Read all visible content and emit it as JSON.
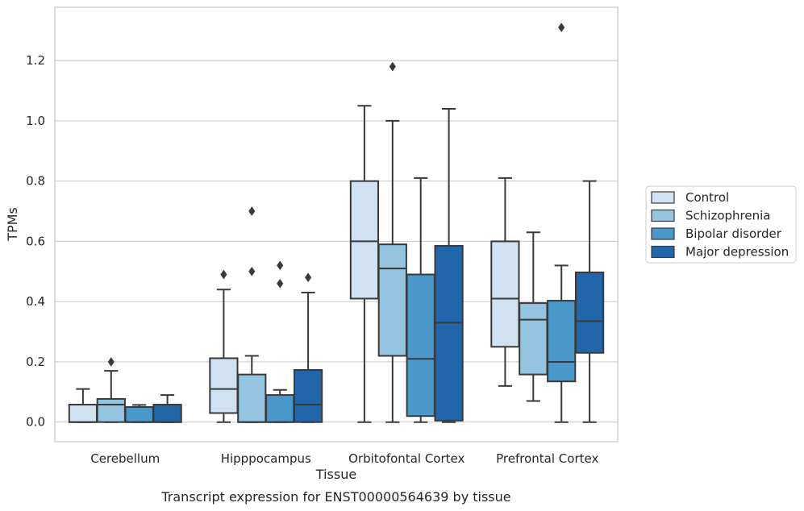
{
  "chart_data": {
    "type": "box",
    "caption": "Transcript expression for ENST00000564639 by tissue",
    "xlabel": "Tissue",
    "ylabel": "TPMs",
    "ylim": [
      -0.065,
      1.377
    ],
    "yticks": [
      0.0,
      0.2,
      0.4,
      0.6,
      0.8,
      1.0,
      1.2
    ],
    "ytick_labels": [
      "0.0",
      "0.2",
      "0.4",
      "0.6",
      "0.8",
      "1.0",
      "1.2"
    ],
    "grid": "horizontal",
    "legend_position": "right",
    "categories": [
      "Cerebellum",
      "Hipppocampus",
      "Orbitofontal Cortex",
      "Prefrontal Cortex"
    ],
    "series": [
      {
        "name": "Control",
        "color": "#d0e1f2",
        "boxes": [
          {
            "whislo": 0.0,
            "q1": 0.0,
            "med": 0.0,
            "q3": 0.058,
            "whishi": 0.11,
            "fliers": []
          },
          {
            "whislo": 0.0,
            "q1": 0.03,
            "med": 0.11,
            "q3": 0.212,
            "whishi": 0.44,
            "fliers": [
              0.49
            ]
          },
          {
            "whislo": 0.0,
            "q1": 0.41,
            "med": 0.6,
            "q3": 0.8,
            "whishi": 1.05,
            "fliers": []
          },
          {
            "whislo": 0.12,
            "q1": 0.25,
            "med": 0.41,
            "q3": 0.6,
            "whishi": 0.81,
            "fliers": []
          }
        ]
      },
      {
        "name": "Schizophrenia",
        "color": "#94c4df",
        "boxes": [
          {
            "whislo": 0.0,
            "q1": 0.0,
            "med": 0.058,
            "q3": 0.077,
            "whishi": 0.17,
            "fliers": [
              0.2
            ]
          },
          {
            "whislo": 0.0,
            "q1": 0.0,
            "med": 0.0,
            "q3": 0.158,
            "whishi": 0.22,
            "fliers": [
              0.5,
              0.7
            ]
          },
          {
            "whislo": 0.0,
            "q1": 0.22,
            "med": 0.51,
            "q3": 0.59,
            "whishi": 1.0,
            "fliers": [
              1.18
            ]
          },
          {
            "whislo": 0.07,
            "q1": 0.158,
            "med": 0.34,
            "q3": 0.395,
            "whishi": 0.63,
            "fliers": []
          }
        ]
      },
      {
        "name": "Bipolar disorder",
        "color": "#4a98c9",
        "boxes": [
          {
            "whislo": 0.0,
            "q1": 0.0,
            "med": 0.0,
            "q3": 0.05,
            "whishi": 0.057,
            "fliers": []
          },
          {
            "whislo": 0.0,
            "q1": 0.0,
            "med": 0.0,
            "q3": 0.09,
            "whishi": 0.107,
            "fliers": [
              0.46,
              0.52
            ]
          },
          {
            "whislo": 0.0,
            "q1": 0.02,
            "med": 0.21,
            "q3": 0.49,
            "whishi": 0.81,
            "fliers": []
          },
          {
            "whislo": 0.0,
            "q1": 0.135,
            "med": 0.2,
            "q3": 0.403,
            "whishi": 0.52,
            "fliers": [
              1.31
            ]
          }
        ]
      },
      {
        "name": "Major depression",
        "color": "#2165ab",
        "boxes": [
          {
            "whislo": 0.0,
            "q1": 0.0,
            "med": 0.0,
            "q3": 0.058,
            "whishi": 0.09,
            "fliers": []
          },
          {
            "whislo": 0.0,
            "q1": 0.0,
            "med": 0.058,
            "q3": 0.173,
            "whishi": 0.43,
            "fliers": [
              0.48
            ]
          },
          {
            "whislo": 0.0,
            "q1": 0.005,
            "med": 0.33,
            "q3": 0.585,
            "whishi": 1.04,
            "fliers": []
          },
          {
            "whislo": 0.0,
            "q1": 0.23,
            "med": 0.335,
            "q3": 0.497,
            "whishi": 0.8,
            "fliers": []
          }
        ]
      }
    ]
  },
  "colors": {
    "box_line": "#3a3a3a",
    "grid": "#cfcfcf",
    "frame": "#cccccc",
    "text": "#262626"
  }
}
